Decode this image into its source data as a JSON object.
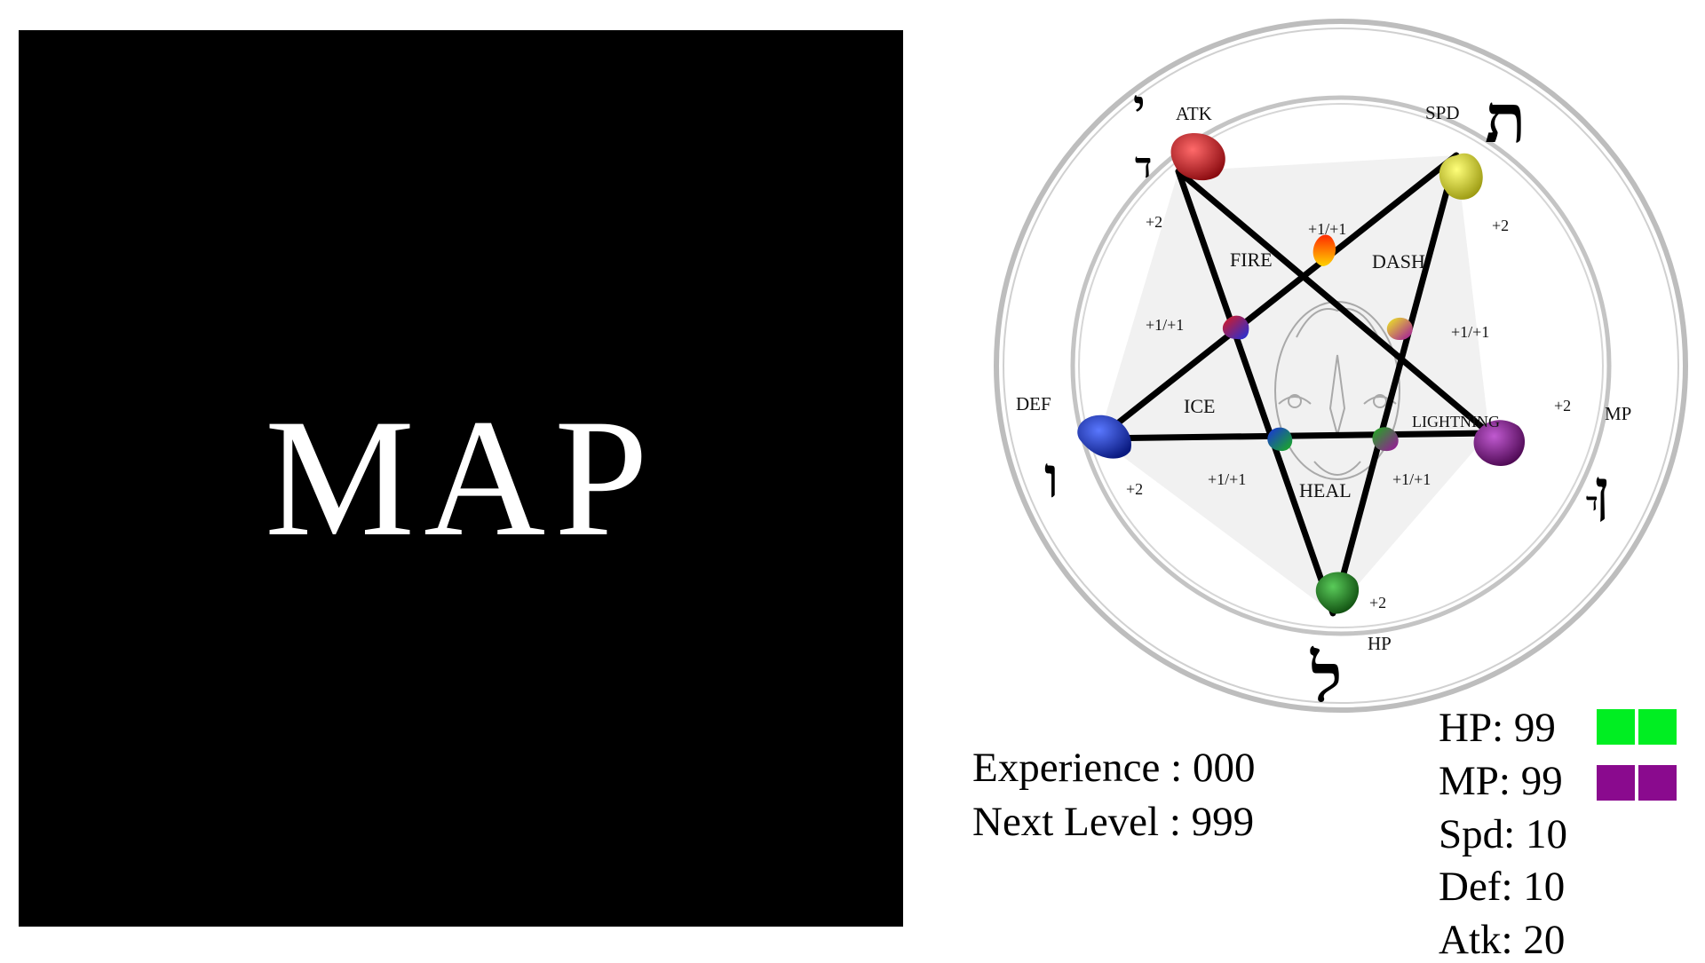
{
  "map": {
    "label": "MAP"
  },
  "wheel": {
    "points": {
      "atk": {
        "label": "ATK",
        "bonus": "+2",
        "color": "#c8151b"
      },
      "spd": {
        "label": "SPD",
        "bonus": "+2",
        "color": "#d9d81a"
      },
      "mp": {
        "label": "MP",
        "bonus": "+2",
        "color": "#7a0b84"
      },
      "hp": {
        "label": "HP",
        "bonus": "+2",
        "color": "#1b7a1b"
      },
      "def": {
        "label": "DEF",
        "bonus": "+2",
        "color": "#1530c0"
      }
    },
    "skills": {
      "fire": "FIRE",
      "dash": "DASH",
      "ice": "ICE",
      "lightning": "LIGHTNING",
      "heal": "HEAL"
    },
    "inner_bonus": "+1/+1",
    "glyphs": {
      "atk_top": "י",
      "atk_bottom": "ד",
      "spd": "ת",
      "def": "ו",
      "mp": "ן",
      "mp_small": "ד",
      "hp": "ל"
    }
  },
  "progress": {
    "experience_label": "Experience",
    "experience_value": "000",
    "next_level_label": "Next Level",
    "next_level_value": "999"
  },
  "stats": {
    "hp": {
      "label": "HP:",
      "value": "99",
      "color": "#00ee22",
      "fill": 1.0
    },
    "mp": {
      "label": "MP:",
      "value": "99",
      "color": "#8a0a8e",
      "fill": 1.0
    },
    "spd": {
      "label": "Spd:",
      "value": "10"
    },
    "def": {
      "label": "Def:",
      "value": "10"
    },
    "atk": {
      "label": "Atk:",
      "value": "20"
    }
  }
}
